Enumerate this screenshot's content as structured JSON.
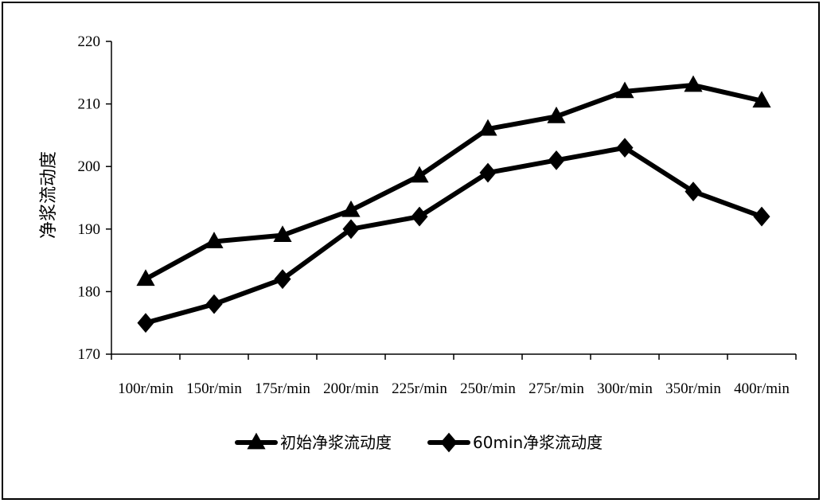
{
  "chart_data": {
    "type": "line",
    "title": "",
    "xlabel": "",
    "ylabel": "净浆流动度",
    "categories": [
      "100r/min",
      "150r/min",
      "175r/min",
      "200r/min",
      "225r/min",
      "250r/min",
      "275r/min",
      "300r/min",
      "350r/min",
      "400r/min"
    ],
    "ylim": [
      170,
      220
    ],
    "yticks": [
      170,
      180,
      190,
      200,
      210,
      220
    ],
    "grid": false,
    "legend_position": "bottom",
    "series": [
      {
        "name": "初始净浆流动度",
        "marker": "triangle",
        "color": "#000000",
        "values": [
          182,
          188,
          189,
          193,
          198.5,
          206,
          208,
          212,
          213,
          210.5
        ]
      },
      {
        "name": "60min净浆流动度",
        "marker": "diamond",
        "color": "#000000",
        "values": [
          175,
          178,
          182,
          190,
          192,
          199,
          201,
          203,
          196,
          192
        ]
      }
    ]
  }
}
